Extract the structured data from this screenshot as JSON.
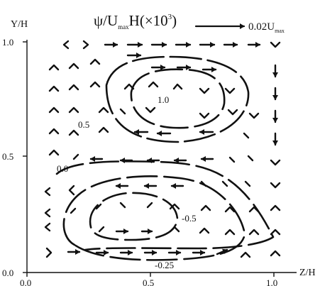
{
  "chart_data": {
    "type": "contour+vector",
    "title_main": "ψ/U",
    "title_sub": "max",
    "title_tail": "H(×10",
    "title_sup": "3",
    "title_close": ")",
    "ref_label_main": "0.02U",
    "ref_label_sub": "max",
    "xlabel": "Z/H",
    "ylabel": "Y/H",
    "xlim": [
      0,
      1
    ],
    "ylim": [
      0,
      1
    ],
    "x_ticks": [
      "0.0",
      "0.5",
      "1.0"
    ],
    "y_ticks": [
      "0.0",
      "0.5",
      "1.0"
    ],
    "contour_labels": [
      "1.0",
      "0.5",
      "0.0",
      "-0.5",
      "-0.25"
    ]
  }
}
